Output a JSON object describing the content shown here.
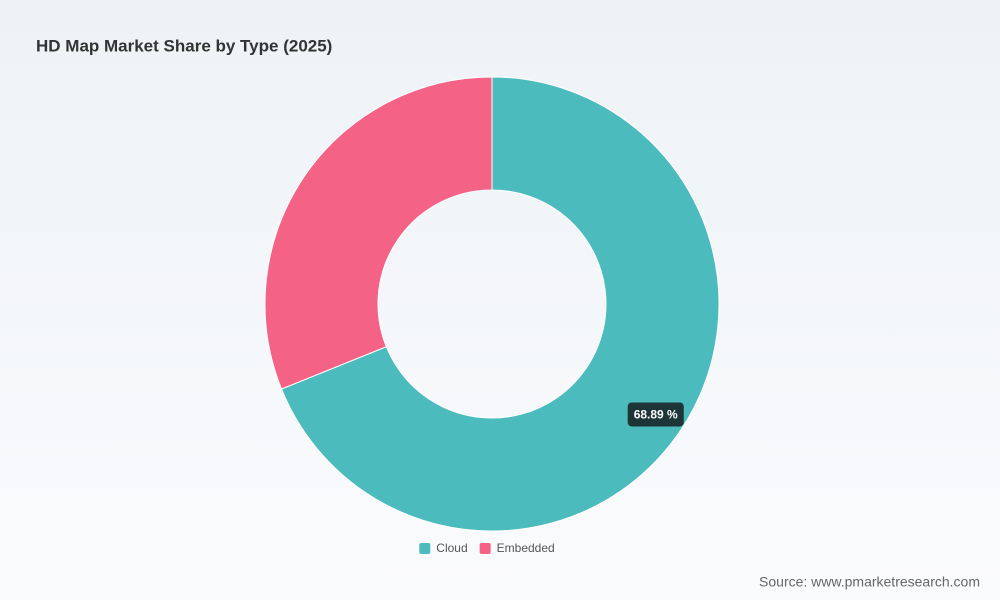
{
  "chart_data": {
    "type": "donut",
    "title": "HD Map Market Share by Type (2025)",
    "categories": [
      "Cloud",
      "Embedded"
    ],
    "values": [
      68.89,
      31.11
    ],
    "value_labels": [
      "68.89 %",
      null
    ],
    "colors": [
      "#4bbbbd",
      "#f46285"
    ]
  },
  "source": "Source: www.pmarketresearch.com"
}
